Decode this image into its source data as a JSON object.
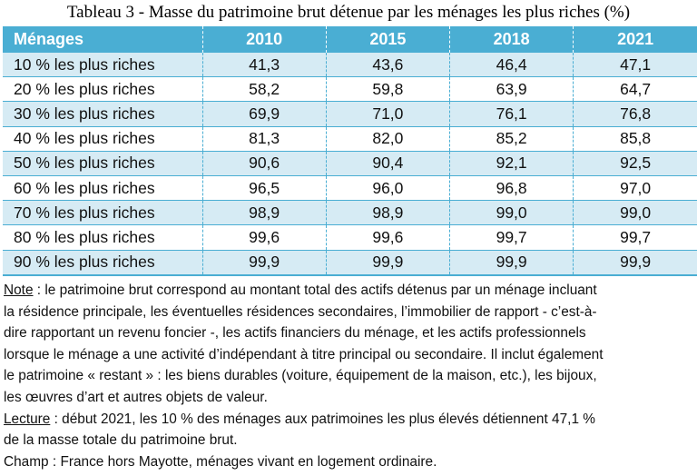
{
  "title": "Tableau 3 - Masse du patrimoine brut détenue par les ménages les plus riches (%)",
  "table": {
    "headers": [
      "Ménages",
      "2010",
      "2015",
      "2018",
      "2021"
    ],
    "rows": [
      [
        "10 % les plus riches",
        "41,3",
        "43,6",
        "46,4",
        "47,1"
      ],
      [
        "20 % les plus riches",
        "58,2",
        "59,8",
        "63,9",
        "64,7"
      ],
      [
        "30 % les plus riches",
        "69,9",
        "71,0",
        "76,1",
        "76,8"
      ],
      [
        "40 % les plus riches",
        "81,3",
        "82,0",
        "85,2",
        "85,8"
      ],
      [
        "50 % les plus riches",
        "90,6",
        "90,4",
        "92,1",
        "92,5"
      ],
      [
        "60 % les plus riches",
        "96,5",
        "96,0",
        "96,8",
        "97,0"
      ],
      [
        "70 % les plus riches",
        "98,9",
        "98,9",
        "99,0",
        "99,0"
      ],
      [
        "80 % les plus riches",
        "99,6",
        "99,6",
        "99,7",
        "99,7"
      ],
      [
        "90 % les plus riches",
        "99,9",
        "99,9",
        "99,9",
        "99,9"
      ]
    ]
  },
  "note": {
    "label": "Note",
    "lines": [
      " : le patrimoine brut correspond au montant total des actifs détenus par un ménage incluant",
      "la résidence principale, les éventuelles résidences secondaires, l’immobilier de rapport - c’est-à-",
      "dire rapportant un revenu foncier -, les actifs financiers du ménage, et les actifs professionnels",
      "lorsque le ménage a une activité d’indépendant à titre principal ou secondaire. Il inclut également",
      "le patrimoine « restant » : les biens durables (voiture, équipement de la maison, etc.), les bijoux,",
      "les œuvres d’art et autres objets de valeur."
    ]
  },
  "lecture": {
    "label": "Lecture",
    "lines": [
      " : début 2021, les 10 % des ménages aux patrimoines les plus élevés détiennent 47,1 %",
      "de la masse totale du patrimoine brut."
    ]
  },
  "champ": "Champ : France hors Mayotte, ménages vivant en logement ordinaire.",
  "colors": {
    "header_bg": "#4aaed3",
    "band_bg": "#d6ebf4"
  }
}
